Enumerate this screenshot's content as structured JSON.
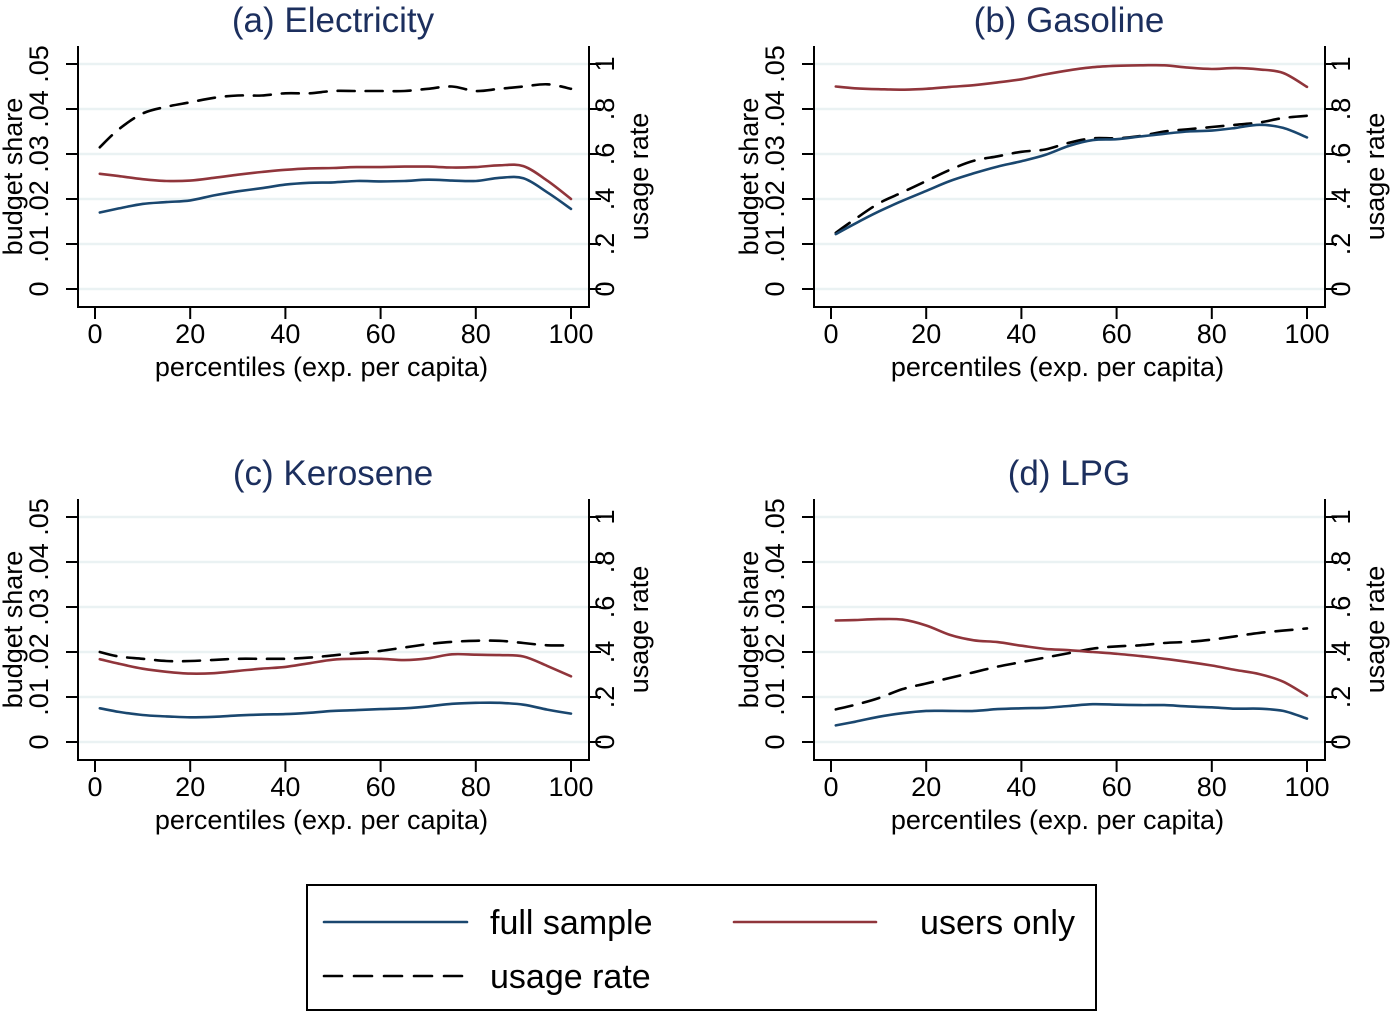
{
  "colors": {
    "full_sample": "#1a476f",
    "users_only": "#90353b",
    "usage_rate": "#000000",
    "title": "#1c2f5e",
    "grid": "#eaf2f3"
  },
  "chart_data": [
    {
      "type": "line",
      "title": "(a) Electricity",
      "xlabel": "percentiles (exp. per capita)",
      "ylabel": "budget share",
      "ylabel_right": "usage rate",
      "xlim": [
        0,
        100
      ],
      "ylim": [
        0,
        0.05
      ],
      "ylim_right": [
        0,
        1
      ],
      "xticks": [
        "0",
        "20",
        "40",
        "60",
        "80",
        "100"
      ],
      "yticks": [
        "0",
        ".01",
        ".02",
        ".03",
        ".04",
        ".05"
      ],
      "yticks_right": [
        "0",
        ".2",
        ".4",
        ".6",
        ".8",
        "1"
      ],
      "grid": true,
      "series": [
        {
          "name": "full sample",
          "axis": "left",
          "x": [
            1,
            5,
            10,
            15,
            20,
            25,
            30,
            35,
            40,
            45,
            50,
            55,
            60,
            65,
            70,
            75,
            80,
            85,
            90,
            95,
            100
          ],
          "y": [
            0.017,
            0.0179,
            0.0189,
            0.0193,
            0.0197,
            0.0208,
            0.0217,
            0.0224,
            0.0232,
            0.0236,
            0.0237,
            0.024,
            0.0239,
            0.024,
            0.0243,
            0.0241,
            0.024,
            0.0247,
            0.0246,
            0.0215,
            0.0178
          ]
        },
        {
          "name": "users only",
          "axis": "left",
          "x": [
            1,
            5,
            10,
            15,
            20,
            25,
            30,
            35,
            40,
            45,
            50,
            55,
            60,
            65,
            70,
            75,
            80,
            85,
            90,
            95,
            100
          ],
          "y": [
            0.0256,
            0.0251,
            0.0244,
            0.024,
            0.0241,
            0.0247,
            0.0254,
            0.026,
            0.0265,
            0.0268,
            0.0269,
            0.0271,
            0.0271,
            0.0272,
            0.0272,
            0.027,
            0.0271,
            0.0275,
            0.0273,
            0.0241,
            0.02
          ]
        },
        {
          "name": "usage rate",
          "axis": "right",
          "x": [
            1,
            5,
            10,
            15,
            20,
            25,
            30,
            35,
            40,
            45,
            50,
            55,
            60,
            65,
            70,
            75,
            80,
            85,
            90,
            95,
            100
          ],
          "y": [
            0.63,
            0.71,
            0.78,
            0.81,
            0.83,
            0.85,
            0.86,
            0.86,
            0.87,
            0.87,
            0.88,
            0.88,
            0.88,
            0.88,
            0.89,
            0.9,
            0.88,
            0.89,
            0.9,
            0.91,
            0.89
          ]
        }
      ]
    },
    {
      "type": "line",
      "title": "(b) Gasoline",
      "xlabel": "percentiles (exp. per capita)",
      "ylabel": "budget share",
      "ylabel_right": "usage rate",
      "xlim": [
        0,
        100
      ],
      "ylim": [
        0,
        0.05
      ],
      "ylim_right": [
        0,
        1
      ],
      "xticks": [
        "0",
        "20",
        "40",
        "60",
        "80",
        "100"
      ],
      "yticks": [
        "0",
        ".01",
        ".02",
        ".03",
        ".04",
        ".05"
      ],
      "yticks_right": [
        "0",
        ".2",
        ".4",
        ".6",
        ".8",
        "1"
      ],
      "grid": true,
      "series": [
        {
          "name": "full sample",
          "axis": "left",
          "x": [
            1,
            5,
            10,
            15,
            20,
            25,
            30,
            35,
            40,
            45,
            50,
            55,
            60,
            65,
            70,
            75,
            80,
            85,
            90,
            95,
            100
          ],
          "y": [
            0.0122,
            0.0145,
            0.0172,
            0.0196,
            0.0218,
            0.024,
            0.0257,
            0.0272,
            0.0284,
            0.0298,
            0.0318,
            0.0331,
            0.0333,
            0.0339,
            0.0345,
            0.035,
            0.0352,
            0.0358,
            0.0365,
            0.0358,
            0.0337
          ]
        },
        {
          "name": "users only",
          "axis": "left",
          "x": [
            1,
            5,
            10,
            15,
            20,
            25,
            30,
            35,
            40,
            45,
            50,
            55,
            60,
            65,
            70,
            75,
            80,
            85,
            90,
            95,
            100
          ],
          "y": [
            0.045,
            0.0446,
            0.0444,
            0.0443,
            0.0445,
            0.0449,
            0.0453,
            0.0459,
            0.0466,
            0.0477,
            0.0486,
            0.0493,
            0.0496,
            0.0497,
            0.0497,
            0.0492,
            0.0489,
            0.0491,
            0.0488,
            0.048,
            0.0449
          ]
        },
        {
          "name": "usage rate",
          "axis": "right",
          "x": [
            1,
            5,
            10,
            15,
            20,
            25,
            30,
            35,
            40,
            45,
            50,
            55,
            60,
            65,
            70,
            75,
            80,
            85,
            90,
            95,
            100
          ],
          "y": [
            0.25,
            0.31,
            0.38,
            0.43,
            0.48,
            0.53,
            0.57,
            0.59,
            0.61,
            0.62,
            0.65,
            0.67,
            0.67,
            0.68,
            0.7,
            0.71,
            0.72,
            0.73,
            0.74,
            0.76,
            0.77
          ]
        }
      ]
    },
    {
      "type": "line",
      "title": "(c) Kerosene",
      "xlabel": "percentiles (exp. per capita)",
      "ylabel": "budget share",
      "ylabel_right": "usage rate",
      "xlim": [
        0,
        100
      ],
      "ylim": [
        0,
        0.05
      ],
      "ylim_right": [
        0,
        1
      ],
      "xticks": [
        "0",
        "20",
        "40",
        "60",
        "80",
        "100"
      ],
      "yticks": [
        "0",
        ".01",
        ".02",
        ".03",
        ".04",
        ".05"
      ],
      "yticks_right": [
        "0",
        ".2",
        ".4",
        ".6",
        ".8",
        "1"
      ],
      "grid": true,
      "series": [
        {
          "name": "full sample",
          "axis": "left",
          "x": [
            1,
            5,
            10,
            15,
            20,
            25,
            30,
            35,
            40,
            45,
            50,
            55,
            60,
            65,
            70,
            75,
            80,
            85,
            90,
            95,
            100
          ],
          "y": [
            0.0075,
            0.0067,
            0.006,
            0.0057,
            0.0055,
            0.0056,
            0.0059,
            0.0061,
            0.0062,
            0.0065,
            0.0069,
            0.0071,
            0.0073,
            0.0075,
            0.0079,
            0.0085,
            0.0087,
            0.0087,
            0.0083,
            0.0072,
            0.0063
          ]
        },
        {
          "name": "users only",
          "axis": "left",
          "x": [
            1,
            5,
            10,
            15,
            20,
            25,
            30,
            35,
            40,
            45,
            50,
            55,
            60,
            65,
            70,
            75,
            80,
            85,
            90,
            95,
            100
          ],
          "y": [
            0.0184,
            0.0174,
            0.0163,
            0.0156,
            0.0152,
            0.0153,
            0.0158,
            0.0163,
            0.0167,
            0.0175,
            0.0183,
            0.0185,
            0.0185,
            0.0182,
            0.0186,
            0.0195,
            0.0194,
            0.0193,
            0.019,
            0.0169,
            0.0146
          ]
        },
        {
          "name": "usage rate",
          "axis": "right",
          "x": [
            1,
            5,
            10,
            15,
            20,
            25,
            30,
            35,
            40,
            45,
            50,
            55,
            60,
            65,
            70,
            75,
            80,
            85,
            90,
            95,
            100
          ],
          "y": [
            0.4,
            0.38,
            0.37,
            0.36,
            0.36,
            0.365,
            0.37,
            0.37,
            0.37,
            0.375,
            0.385,
            0.395,
            0.405,
            0.42,
            0.435,
            0.445,
            0.45,
            0.45,
            0.44,
            0.43,
            0.43
          ]
        }
      ]
    },
    {
      "type": "line",
      "title": "(d) LPG",
      "xlabel": "percentiles (exp. per capita)",
      "ylabel": "budget share",
      "ylabel_right": "usage rate",
      "xlim": [
        0,
        100
      ],
      "ylim": [
        0,
        0.05
      ],
      "ylim_right": [
        0,
        1
      ],
      "xticks": [
        "0",
        "20",
        "40",
        "60",
        "80",
        "100"
      ],
      "yticks": [
        "0",
        ".01",
        ".02",
        ".03",
        ".04",
        ".05"
      ],
      "yticks_right": [
        "0",
        ".2",
        ".4",
        ".6",
        ".8",
        "1"
      ],
      "grid": true,
      "series": [
        {
          "name": "full sample",
          "axis": "left",
          "x": [
            1,
            5,
            10,
            15,
            20,
            25,
            30,
            35,
            40,
            45,
            50,
            55,
            60,
            65,
            70,
            75,
            80,
            85,
            90,
            95,
            100
          ],
          "y": [
            0.0037,
            0.0045,
            0.0056,
            0.0064,
            0.0069,
            0.0069,
            0.0069,
            0.0073,
            0.0075,
            0.0076,
            0.008,
            0.0084,
            0.0083,
            0.0082,
            0.0082,
            0.0079,
            0.0077,
            0.0074,
            0.0074,
            0.0069,
            0.0052
          ]
        },
        {
          "name": "users only",
          "axis": "left",
          "x": [
            1,
            5,
            10,
            15,
            20,
            25,
            30,
            35,
            40,
            45,
            50,
            55,
            60,
            65,
            70,
            75,
            80,
            85,
            90,
            95,
            100
          ],
          "y": [
            0.027,
            0.0271,
            0.0273,
            0.0272,
            0.0259,
            0.0238,
            0.0226,
            0.0222,
            0.0214,
            0.0207,
            0.0204,
            0.02,
            0.0196,
            0.0191,
            0.0185,
            0.0178,
            0.017,
            0.016,
            0.0151,
            0.0134,
            0.0103
          ]
        },
        {
          "name": "usage rate",
          "axis": "right",
          "x": [
            1,
            5,
            10,
            15,
            20,
            25,
            30,
            35,
            40,
            45,
            50,
            55,
            60,
            65,
            70,
            75,
            80,
            85,
            90,
            95,
            100
          ],
          "y": [
            0.145,
            0.165,
            0.195,
            0.235,
            0.26,
            0.285,
            0.31,
            0.335,
            0.355,
            0.375,
            0.395,
            0.415,
            0.425,
            0.43,
            0.44,
            0.445,
            0.455,
            0.47,
            0.485,
            0.495,
            0.505
          ]
        }
      ]
    }
  ],
  "legend": {
    "placement": "bottom-center",
    "items": [
      {
        "label": "full sample",
        "style": "solid",
        "color_key": "full_sample"
      },
      {
        "label": "users only",
        "style": "solid",
        "color_key": "users_only"
      },
      {
        "label": "usage rate",
        "style": "dashed",
        "color_key": "usage_rate"
      }
    ]
  }
}
